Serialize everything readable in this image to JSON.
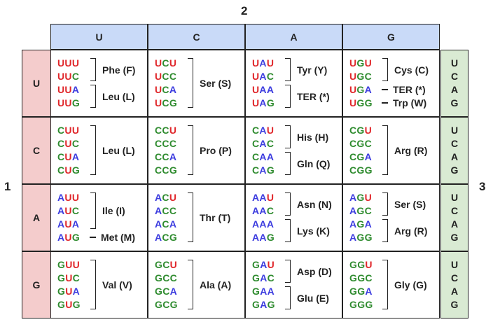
{
  "axis_labels": {
    "first": "1",
    "second": "2",
    "third": "3"
  },
  "second_position": [
    "U",
    "C",
    "A",
    "G"
  ],
  "first_position": [
    "U",
    "C",
    "A",
    "G"
  ],
  "third_position": [
    "U",
    "C",
    "A",
    "G"
  ],
  "nucleotide_colors": {
    "A": "#3c3cdf",
    "U": "#e0262a",
    "C": "#2e8b2e",
    "G": "#2e8b2e"
  },
  "header_colors": {
    "top": "#c9daf8",
    "left": "#f4cccc",
    "right": "#d9ead3"
  },
  "cells": [
    {
      "first": "U",
      "second": "U",
      "codons": [
        "UUU",
        "UUC",
        "UUA",
        "UUG"
      ],
      "groups": [
        {
          "rows": [
            0,
            1
          ],
          "label": "Phe (F)"
        },
        {
          "rows": [
            2,
            3
          ],
          "label": "Leu (L)"
        }
      ]
    },
    {
      "first": "U",
      "second": "C",
      "codons": [
        "UCU",
        "UCC",
        "UCA",
        "UCG"
      ],
      "groups": [
        {
          "rows": [
            0,
            3
          ],
          "label": "Ser (S)"
        }
      ]
    },
    {
      "first": "U",
      "second": "A",
      "codons": [
        "UAU",
        "UAC",
        "UAA",
        "UAG"
      ],
      "groups": [
        {
          "rows": [
            0,
            1
          ],
          "label": "Tyr (Y)"
        },
        {
          "rows": [
            2,
            3
          ],
          "label": "TER (*)"
        }
      ]
    },
    {
      "first": "U",
      "second": "G",
      "codons": [
        "UGU",
        "UGC",
        "UGA",
        "UGG"
      ],
      "groups": [
        {
          "rows": [
            0,
            1
          ],
          "label": "Cys (C)"
        },
        {
          "rows": [
            2,
            2
          ],
          "label": "TER (*)"
        },
        {
          "rows": [
            3,
            3
          ],
          "label": "Trp (W)"
        }
      ]
    },
    {
      "first": "C",
      "second": "U",
      "codons": [
        "CUU",
        "CUC",
        "CUA",
        "CUG"
      ],
      "groups": [
        {
          "rows": [
            0,
            3
          ],
          "label": "Leu (L)"
        }
      ]
    },
    {
      "first": "C",
      "second": "C",
      "codons": [
        "CCU",
        "CCC",
        "CCA",
        "CCG"
      ],
      "groups": [
        {
          "rows": [
            0,
            3
          ],
          "label": "Pro (P)"
        }
      ]
    },
    {
      "first": "C",
      "second": "A",
      "codons": [
        "CAU",
        "CAC",
        "CAA",
        "CAG"
      ],
      "groups": [
        {
          "rows": [
            0,
            1
          ],
          "label": "His (H)"
        },
        {
          "rows": [
            2,
            3
          ],
          "label": "Gln (Q)"
        }
      ]
    },
    {
      "first": "C",
      "second": "G",
      "codons": [
        "CGU",
        "CGC",
        "CGA",
        "CGG"
      ],
      "groups": [
        {
          "rows": [
            0,
            3
          ],
          "label": "Arg (R)"
        }
      ]
    },
    {
      "first": "A",
      "second": "U",
      "codons": [
        "AUU",
        "AUC",
        "AUA",
        "AUG"
      ],
      "groups": [
        {
          "rows": [
            0,
            2
          ],
          "label": "Ile (I)"
        },
        {
          "rows": [
            3,
            3
          ],
          "label": "Met (M)"
        }
      ]
    },
    {
      "first": "A",
      "second": "C",
      "codons": [
        "ACU",
        "ACC",
        "ACA",
        "ACG"
      ],
      "groups": [
        {
          "rows": [
            0,
            3
          ],
          "label": "Thr (T)"
        }
      ]
    },
    {
      "first": "A",
      "second": "A",
      "codons": [
        "AAU",
        "AAC",
        "AAA",
        "AAG"
      ],
      "groups": [
        {
          "rows": [
            0,
            1
          ],
          "label": "Asn (N)"
        },
        {
          "rows": [
            2,
            3
          ],
          "label": "Lys (K)"
        }
      ]
    },
    {
      "first": "A",
      "second": "G",
      "codons": [
        "AGU",
        "AGC",
        "AGA",
        "AGG"
      ],
      "groups": [
        {
          "rows": [
            0,
            1
          ],
          "label": "Ser (S)"
        },
        {
          "rows": [
            2,
            3
          ],
          "label": "Arg (R)"
        }
      ]
    },
    {
      "first": "G",
      "second": "U",
      "codons": [
        "GUU",
        "GUC",
        "GUA",
        "GUG"
      ],
      "groups": [
        {
          "rows": [
            0,
            3
          ],
          "label": "Val (V)"
        }
      ]
    },
    {
      "first": "G",
      "second": "C",
      "codons": [
        "GCU",
        "GCC",
        "GCA",
        "GCG"
      ],
      "groups": [
        {
          "rows": [
            0,
            3
          ],
          "label": "Ala (A)"
        }
      ]
    },
    {
      "first": "G",
      "second": "A",
      "codons": [
        "GAU",
        "GAC",
        "GAA",
        "GAG"
      ],
      "groups": [
        {
          "rows": [
            0,
            1
          ],
          "label": "Asp (D)"
        },
        {
          "rows": [
            2,
            3
          ],
          "label": "Glu (E)"
        }
      ]
    },
    {
      "first": "G",
      "second": "G",
      "codons": [
        "GGU",
        "GGC",
        "GGA",
        "GGG"
      ],
      "groups": [
        {
          "rows": [
            0,
            3
          ],
          "label": "Gly (G)"
        }
      ]
    }
  ]
}
